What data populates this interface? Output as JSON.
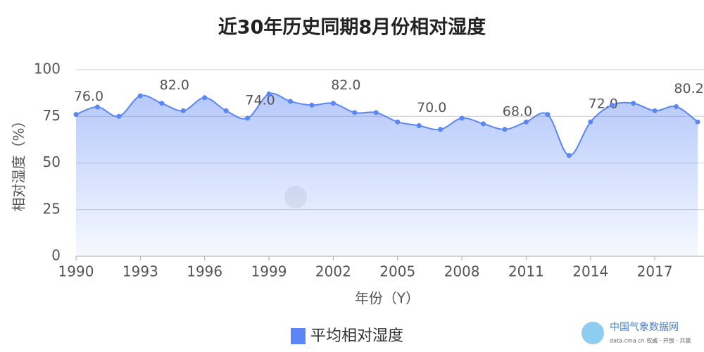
{
  "chart_data": {
    "type": "area",
    "title": "近30年历史同期8月份相对湿度",
    "x_label": "年份（Y）",
    "y_label": "相对湿度（%）",
    "x": [
      1990,
      1991,
      1992,
      1993,
      1994,
      1995,
      1996,
      1997,
      1998,
      1999,
      2000,
      2001,
      2002,
      2003,
      2004,
      2005,
      2006,
      2007,
      2008,
      2009,
      2010,
      2011,
      2012,
      2013,
      2014,
      2015,
      2016,
      2017,
      2018,
      2019
    ],
    "series": [
      {
        "name": "平均相对湿度",
        "color": "#5b86f5",
        "values": [
          76,
          80,
          75,
          86,
          82,
          78,
          85,
          78,
          74,
          87,
          83,
          81,
          82,
          77,
          77,
          72,
          70,
          68,
          74,
          71,
          68,
          72,
          76,
          54,
          72,
          81,
          82,
          78,
          80.2,
          72
        ],
        "value_labels": [
          "76.0",
          null,
          null,
          null,
          "82.0",
          null,
          null,
          null,
          "74.0",
          null,
          null,
          null,
          "82.0",
          null,
          null,
          null,
          "70.0",
          null,
          null,
          null,
          "68.0",
          null,
          null,
          null,
          "72.0",
          null,
          null,
          null,
          "80.2",
          null
        ]
      }
    ],
    "xlim": [
      1990,
      2019
    ],
    "xticks": [
      1990,
      1993,
      1996,
      1999,
      2002,
      2005,
      2008,
      2011,
      2014,
      2017
    ],
    "ylim": [
      0,
      100
    ],
    "yticks": [
      0,
      25,
      50,
      75,
      100
    ],
    "grid": true,
    "legend": "bottom",
    "logo": {
      "name": "中国气象数据网",
      "tagline": "data.cma.cn 权威 · 开放 · 共赢"
    }
  }
}
